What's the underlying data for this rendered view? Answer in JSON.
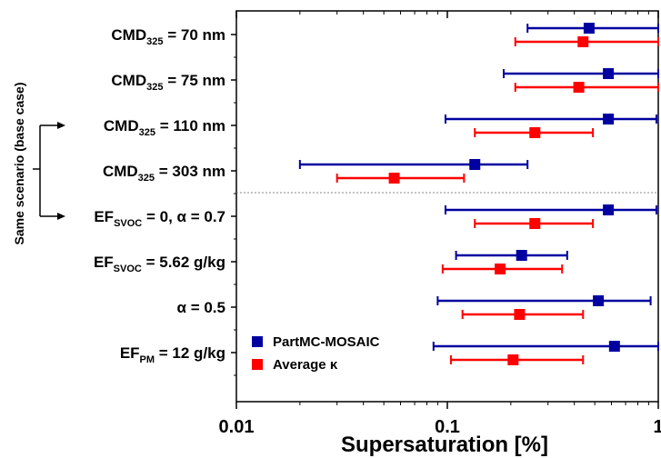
{
  "chart_data": {
    "type": "scatter",
    "orientation": "horizontal",
    "x_scale": "log",
    "xlim": [
      0.01,
      1
    ],
    "xlabel": "Supersaturation [%]",
    "x_ticks": [
      "0.01",
      "0.1",
      "1"
    ],
    "side_label": "Same scenario (base case)",
    "categories": [
      {
        "main": "CMD",
        "sub": "325",
        "rest": " = 70 nm"
      },
      {
        "main": "CMD",
        "sub": "325",
        "rest": " = 75 nm"
      },
      {
        "main": "CMD",
        "sub": "325",
        "rest": " = 110 nm"
      },
      {
        "main": "CMD",
        "sub": "325",
        "rest": " = 303 nm"
      },
      {
        "main": "EF",
        "sub": "SVOC",
        "rest": " = 0, α = 0.7"
      },
      {
        "main": "EF",
        "sub": "SVOC",
        "rest": " = 5.62 g/kg"
      },
      {
        "main": "",
        "sub": "",
        "rest": "α = 0.5"
      },
      {
        "main": "EF",
        "sub": "PM",
        "rest": " = 12 g/kg"
      }
    ],
    "series": [
      {
        "name": "PartMC-MOSAIC",
        "color": "#0000a0",
        "center": [
          0.47,
          0.58,
          0.58,
          0.135,
          0.58,
          0.225,
          0.52,
          0.62
        ],
        "low": [
          0.24,
          0.185,
          0.098,
          0.02,
          0.098,
          0.11,
          0.09,
          0.086
        ],
        "high": [
          1.0,
          1.0,
          0.98,
          0.24,
          0.98,
          0.37,
          0.92,
          1.0
        ]
      },
      {
        "name": "Average κ",
        "color": "#ff0000",
        "center": [
          0.44,
          0.42,
          0.26,
          0.056,
          0.26,
          0.178,
          0.22,
          0.205
        ],
        "low": [
          0.21,
          0.21,
          0.135,
          0.03,
          0.135,
          0.095,
          0.118,
          0.104
        ],
        "high": [
          1.0,
          1.0,
          0.49,
          0.12,
          0.49,
          0.35,
          0.44,
          0.44
        ]
      }
    ],
    "legend_position": "bottom-left",
    "divider_between": [
      4,
      5
    ],
    "bracket_between": [
      3,
      5
    ]
  }
}
